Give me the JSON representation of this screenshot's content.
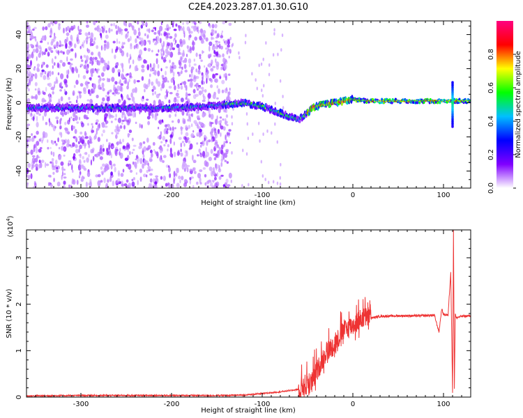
{
  "title": "C2E4.2023.287.01.30.G10",
  "chart_data": [
    {
      "type": "heatmap",
      "xlabel": "Height of straight line (km)",
      "ylabel": "Frequency (Hz)",
      "xlim": [
        -360,
        130
      ],
      "ylim": [
        -50,
        48
      ],
      "xticks": [
        -300,
        -200,
        -100,
        0,
        100
      ],
      "yticks": [
        -40,
        -20,
        0,
        20,
        40
      ],
      "colorbar": {
        "label": "Normalized spectral amplitude",
        "range": [
          0.0,
          1.0
        ],
        "ticks": [
          "0.0",
          "0.2",
          "0.4",
          "0.6",
          "0.8"
        ],
        "colors": [
          "#ffffff",
          "#8000ff",
          "#0000ff",
          "#00c0ff",
          "#00ff00",
          "#ffff00",
          "#ff0000",
          "#ff0080"
        ]
      },
      "ridge": {
        "x": [
          -360,
          -320,
          -280,
          -240,
          -200,
          -160,
          -140,
          -120,
          -100,
          -90,
          -80,
          -70,
          -60,
          -50,
          -45,
          -40,
          -30,
          -20,
          -10,
          0,
          20,
          60,
          90,
          100,
          110,
          130
        ],
        "frequency": [
          -3,
          -3,
          -3,
          -3,
          -3,
          -2,
          -1,
          0,
          -2,
          -4,
          -6,
          -8,
          -10,
          -6,
          -3,
          -2,
          -1,
          0,
          1,
          2,
          1,
          1,
          1,
          1,
          1,
          1
        ]
      }
    },
    {
      "type": "line",
      "xlabel": "Height of straight line (km)",
      "ylabel": "SNR (10 * v/v)",
      "scale_note": "(x10",
      "scale_exp": "4",
      "scale_close": ")",
      "xlim": [
        -360,
        130
      ],
      "ylim": [
        0,
        3.6
      ],
      "xticks": [
        -300,
        -200,
        -100,
        0,
        100
      ],
      "yticks": [
        0,
        1,
        2,
        3
      ],
      "color": "#ee3333",
      "series": [
        {
          "x": [
            -360,
            -300,
            -200,
            -140,
            -120,
            -100,
            -80,
            -60,
            -45,
            -40,
            -35,
            -30,
            -25,
            -20,
            -15,
            -10,
            -5,
            0,
            10,
            20,
            30,
            50,
            70,
            90,
            95,
            98,
            100,
            105,
            108,
            110,
            111,
            112,
            113,
            114,
            116,
            120,
            130
          ],
          "y": [
            0.01,
            0.02,
            0.02,
            0.02,
            0.03,
            0.06,
            0.1,
            0.15,
            0.25,
            0.5,
            0.7,
            0.9,
            1.0,
            1.1,
            1.25,
            1.4,
            1.45,
            1.5,
            1.65,
            1.7,
            1.74,
            1.75,
            1.75,
            1.76,
            1.4,
            1.9,
            1.78,
            1.76,
            2.7,
            0.1,
            3.6,
            0.2,
            1.8,
            1.7,
            1.72,
            1.74,
            1.75
          ]
        }
      ]
    }
  ]
}
